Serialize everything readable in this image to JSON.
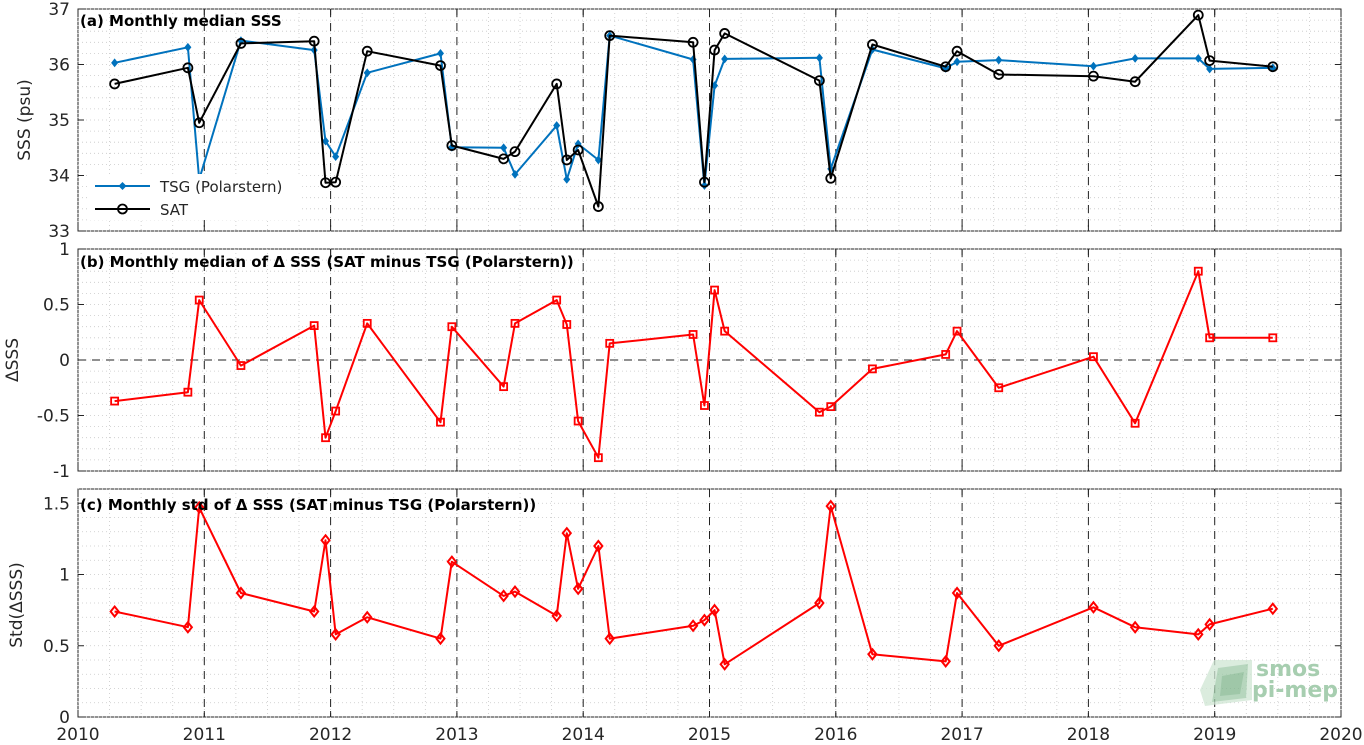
{
  "colors": {
    "tsg": "#0072BD",
    "sat": "#000000",
    "delta": "#FF0000",
    "grid_minor": "#c8c8c8",
    "axis": "#262626",
    "logo_green": "#9ec9a8"
  },
  "logo": {
    "line1": "smos",
    "line2": "pi-mep",
    "icon": "leaf-icon"
  },
  "xaxis": {
    "range": [
      2010,
      2020
    ],
    "ticks": [
      "2010",
      "2011",
      "2012",
      "2013",
      "2014",
      "2015",
      "2016",
      "2017",
      "2018",
      "2019",
      "2020"
    ]
  },
  "chart_data": [
    {
      "type": "line",
      "title": "(a) Monthly median SSS",
      "xlabel": "",
      "ylabel": "SSS (psu)",
      "xlim": [
        2010,
        2020
      ],
      "ylim": [
        33,
        37
      ],
      "yticks": [
        "33",
        "34",
        "35",
        "36",
        "37"
      ],
      "grid": true,
      "legend_placement": "bottom-left",
      "series": [
        {
          "name": "TSG (Polarstern)",
          "marker": "diamond",
          "x": [
            2010.29,
            2010.87,
            2010.96,
            2011.29,
            2011.87,
            2011.96,
            2012.04,
            2012.29,
            2012.87,
            2012.96,
            2013.37,
            2013.46,
            2013.79,
            2013.87,
            2013.96,
            2014.12,
            2014.21,
            2014.87,
            2014.96,
            2015.04,
            2015.12,
            2015.87,
            2015.96,
            2016.29,
            2016.87,
            2016.96,
            2017.29,
            2018.04,
            2018.37,
            2018.87,
            2018.96,
            2019.46
          ],
          "y": [
            36.03,
            36.31,
            33.93,
            36.43,
            36.26,
            34.62,
            34.34,
            35.85,
            36.2,
            34.51,
            34.5,
            34.02,
            34.9,
            33.93,
            34.57,
            34.28,
            36.52,
            36.09,
            33.82,
            35.62,
            36.1,
            36.12,
            34.12,
            36.27,
            35.93,
            36.05,
            36.08,
            35.97,
            36.11,
            36.11,
            35.92,
            35.94
          ]
        },
        {
          "name": "SAT",
          "marker": "circle",
          "x": [
            2010.29,
            2010.87,
            2010.96,
            2011.29,
            2011.87,
            2011.96,
            2012.04,
            2012.29,
            2012.87,
            2012.96,
            2013.37,
            2013.46,
            2013.79,
            2013.87,
            2013.96,
            2014.12,
            2014.21,
            2014.87,
            2014.96,
            2015.04,
            2015.12,
            2015.87,
            2015.96,
            2016.29,
            2016.87,
            2016.96,
            2017.29,
            2018.04,
            2018.37,
            2018.87,
            2018.96,
            2019.46
          ],
          "y": [
            35.65,
            35.94,
            34.95,
            36.38,
            36.42,
            33.87,
            33.88,
            36.24,
            35.98,
            34.54,
            34.3,
            34.43,
            35.65,
            34.28,
            34.46,
            33.44,
            36.52,
            36.4,
            33.88,
            36.26,
            36.56,
            35.71,
            33.95,
            36.36,
            35.96,
            36.24,
            35.82,
            35.79,
            35.69,
            36.89,
            36.07,
            35.96
          ]
        }
      ]
    },
    {
      "type": "line",
      "title": "(b) Monthly median of Δ SSS (SAT minus TSG (Polarstern))",
      "xlabel": "",
      "ylabel": "ΔSSS",
      "xlim": [
        2010,
        2020
      ],
      "ylim": [
        -1,
        1
      ],
      "yticks": [
        "-1",
        "-0.5",
        "0",
        "0.5",
        "1"
      ],
      "grid": true,
      "reference_line": 0,
      "series": [
        {
          "marker": "square",
          "x": [
            2010.29,
            2010.87,
            2010.96,
            2011.29,
            2011.87,
            2011.96,
            2012.04,
            2012.29,
            2012.87,
            2012.96,
            2013.37,
            2013.46,
            2013.79,
            2013.87,
            2013.96,
            2014.12,
            2014.21,
            2014.87,
            2014.96,
            2015.04,
            2015.12,
            2015.87,
            2015.96,
            2016.29,
            2016.87,
            2016.96,
            2017.29,
            2018.04,
            2018.37,
            2018.87,
            2018.96,
            2019.46
          ],
          "y": [
            -0.37,
            -0.29,
            0.54,
            -0.05,
            0.31,
            -0.7,
            -0.46,
            0.33,
            -0.56,
            0.3,
            -0.24,
            0.33,
            0.54,
            0.32,
            -0.55,
            -0.88,
            0.15,
            0.23,
            -0.41,
            0.63,
            0.26,
            -0.47,
            -0.42,
            -0.08,
            0.05,
            0.26,
            -0.25,
            0.03,
            -0.57,
            0.8,
            0.2,
            0.2
          ]
        }
      ]
    },
    {
      "type": "line",
      "title": "(c) Monthly std of Δ SSS (SAT minus TSG (Polarstern))",
      "xlabel": "",
      "ylabel": "Std(ΔSSS)",
      "xlim": [
        2010,
        2020
      ],
      "ylim": [
        0,
        1.6
      ],
      "yticks": [
        "0",
        "0.5",
        "1",
        "1.5"
      ],
      "grid": true,
      "series": [
        {
          "marker": "diamond",
          "x": [
            2010.29,
            2010.87,
            2010.96,
            2011.29,
            2011.87,
            2011.96,
            2012.04,
            2012.29,
            2012.87,
            2012.96,
            2013.37,
            2013.46,
            2013.79,
            2013.87,
            2013.96,
            2014.12,
            2014.21,
            2014.87,
            2014.96,
            2015.04,
            2015.12,
            2015.87,
            2015.96,
            2016.29,
            2016.87,
            2016.96,
            2017.29,
            2018.04,
            2018.37,
            2018.87,
            2018.96,
            2019.46
          ],
          "y": [
            0.74,
            0.63,
            1.47,
            0.87,
            0.74,
            1.24,
            0.58,
            0.7,
            0.55,
            1.09,
            0.85,
            0.88,
            0.71,
            1.29,
            0.9,
            1.2,
            0.55,
            0.64,
            0.68,
            0.75,
            0.37,
            0.8,
            1.48,
            0.44,
            0.39,
            0.87,
            0.5,
            0.77,
            0.63,
            0.58,
            0.65,
            0.76
          ]
        }
      ]
    }
  ]
}
